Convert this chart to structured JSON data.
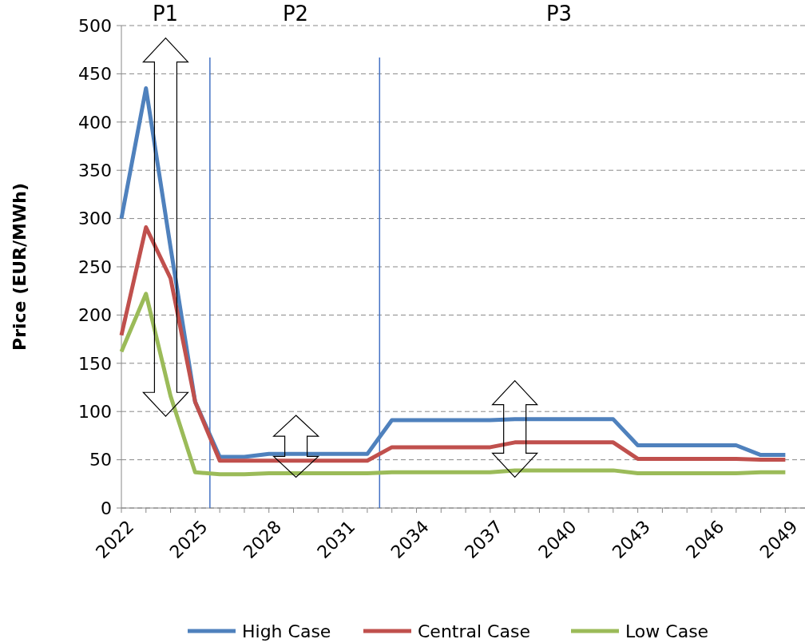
{
  "chart_data": {
    "type": "line",
    "ylabel": "Price (EUR/MWh)",
    "x": [
      2022,
      2023,
      2024,
      2025,
      2026,
      2027,
      2028,
      2029,
      2030,
      2031,
      2032,
      2033,
      2034,
      2035,
      2036,
      2037,
      2038,
      2039,
      2040,
      2041,
      2042,
      2043,
      2044,
      2045,
      2046,
      2047,
      2048,
      2049
    ],
    "series": [
      {
        "name": "High Case",
        "color": "#4f81bd",
        "values": [
          300,
          435,
          270,
          110,
          53,
          53,
          56,
          56,
          56,
          56,
          56,
          91,
          91,
          91,
          91,
          91,
          92,
          92,
          92,
          92,
          92,
          65,
          65,
          65,
          65,
          65,
          55,
          55
        ]
      },
      {
        "name": "Central Case",
        "color": "#c0504d",
        "values": [
          179,
          291,
          238,
          110,
          49,
          49,
          49,
          49,
          49,
          49,
          49,
          63,
          63,
          63,
          63,
          63,
          68,
          68,
          68,
          68,
          68,
          51,
          51,
          51,
          51,
          51,
          50,
          50
        ]
      },
      {
        "name": "Low Case",
        "color": "#9bbb59",
        "values": [
          162,
          222,
          116,
          37,
          35,
          35,
          36,
          36,
          36,
          36,
          36,
          37,
          37,
          37,
          37,
          37,
          39,
          39,
          39,
          39,
          39,
          36,
          36,
          36,
          36,
          36,
          37,
          37
        ]
      }
    ],
    "xlim": [
      2022,
      2049.8
    ],
    "xticks": [
      2022,
      {
        "value": 2023,
        "label": null
      },
      {
        "value": 2024,
        "label": null
      },
      2025,
      {
        "value": 2026,
        "label": null
      },
      {
        "value": 2027,
        "label": null
      },
      2028,
      {
        "value": 2029,
        "label": null
      },
      {
        "value": 2030,
        "label": null
      },
      2031,
      {
        "value": 2032,
        "label": null
      },
      {
        "value": 2033,
        "label": null
      },
      2034,
      {
        "value": 2035,
        "label": null
      },
      {
        "value": 2036,
        "label": null
      },
      2037,
      {
        "value": 2038,
        "label": null
      },
      {
        "value": 2039,
        "label": null
      },
      2040,
      {
        "value": 2041,
        "label": null
      },
      {
        "value": 2042,
        "label": null
      },
      2043,
      {
        "value": 2044,
        "label": null
      },
      {
        "value": 2045,
        "label": null
      },
      2046,
      {
        "value": 2047,
        "label": null
      },
      {
        "value": 2048,
        "label": null
      },
      2049
    ],
    "ylim": [
      0,
      500
    ],
    "yticks": [
      0,
      50,
      100,
      150,
      200,
      250,
      300,
      350,
      400,
      450,
      500
    ],
    "grid": "y",
    "legend": "bottom",
    "ref_lines": [
      {
        "axis": "x",
        "value": 2025.6,
        "color": "#4472c4"
      },
      {
        "axis": "x",
        "value": 2032.5,
        "color": "#4472c4"
      }
    ],
    "annotations": [
      "P1",
      "P2",
      "P3"
    ]
  }
}
